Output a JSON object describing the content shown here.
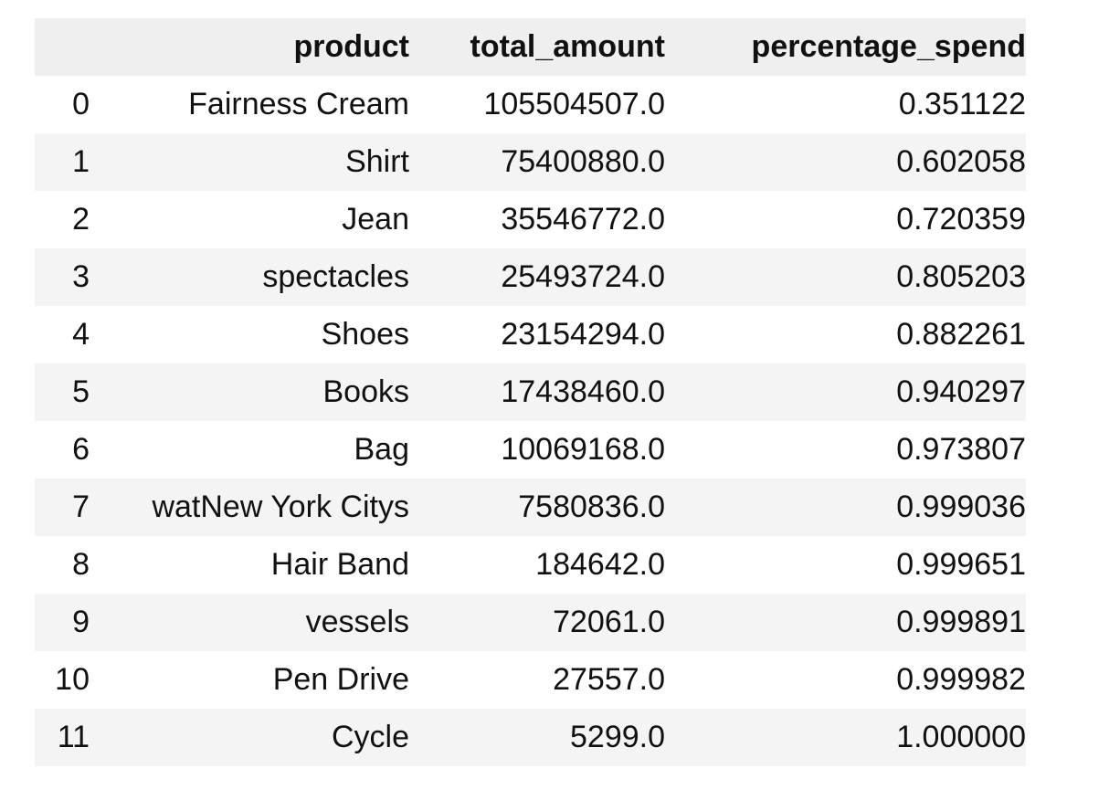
{
  "table": {
    "columns": [
      "",
      "product",
      "total_amount",
      "percentage_spend"
    ],
    "rows": [
      {
        "index": "0",
        "product": "Fairness Cream",
        "total_amount": "105504507.0",
        "percentage_spend": "0.351122"
      },
      {
        "index": "1",
        "product": "Shirt",
        "total_amount": "75400880.0",
        "percentage_spend": "0.602058"
      },
      {
        "index": "2",
        "product": "Jean",
        "total_amount": "35546772.0",
        "percentage_spend": "0.720359"
      },
      {
        "index": "3",
        "product": "spectacles",
        "total_amount": "25493724.0",
        "percentage_spend": "0.805203"
      },
      {
        "index": "4",
        "product": "Shoes",
        "total_amount": "23154294.0",
        "percentage_spend": "0.882261"
      },
      {
        "index": "5",
        "product": "Books",
        "total_amount": "17438460.0",
        "percentage_spend": "0.940297"
      },
      {
        "index": "6",
        "product": "Bag",
        "total_amount": "10069168.0",
        "percentage_spend": "0.973807"
      },
      {
        "index": "7",
        "product": "watNew York Citys",
        "total_amount": "7580836.0",
        "percentage_spend": "0.999036"
      },
      {
        "index": "8",
        "product": "Hair Band",
        "total_amount": "184642.0",
        "percentage_spend": "0.999651"
      },
      {
        "index": "9",
        "product": "vessels",
        "total_amount": "72061.0",
        "percentage_spend": "0.999891"
      },
      {
        "index": "10",
        "product": "Pen Drive",
        "total_amount": "27557.0",
        "percentage_spend": "0.999982"
      },
      {
        "index": "11",
        "product": "Cycle",
        "total_amount": "5299.0",
        "percentage_spend": "1.000000"
      }
    ]
  },
  "colors": {
    "header_bg": "#efefef",
    "stripe_bg": "#f4f4f4",
    "text": "#111111"
  }
}
